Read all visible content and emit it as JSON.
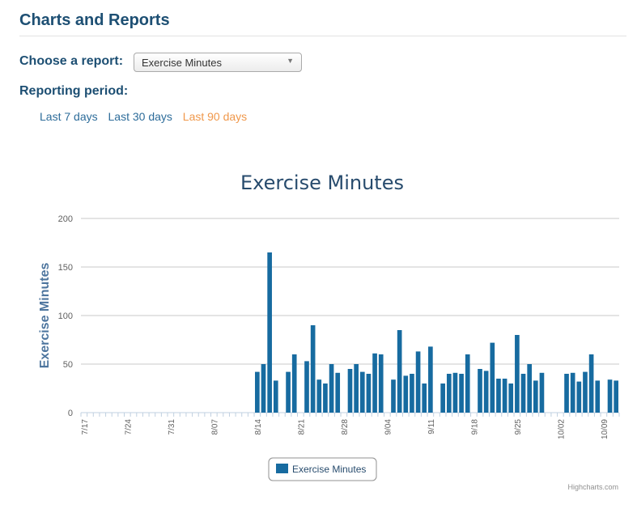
{
  "page": {
    "title": "Charts and Reports",
    "choose_label": "Choose a report:",
    "report_select": {
      "value": "Exercise Minutes"
    },
    "period_label": "Reporting period:",
    "periods": [
      {
        "label": "Last 7 days",
        "active": false
      },
      {
        "label": "Last 30 days",
        "active": false
      },
      {
        "label": "Last 90 days",
        "active": true
      }
    ],
    "credit": "Highcharts.com"
  },
  "colors": {
    "heading": "#1d4f73",
    "link": "#2d6c9a",
    "active_link": "#f0984b",
    "bar": "#176ba0"
  },
  "chart_data": {
    "type": "bar",
    "title": "Exercise Minutes",
    "ylabel": "Exercise Minutes",
    "xlabel": "",
    "ylim": [
      0,
      200
    ],
    "yticks": [
      0,
      50,
      100,
      150,
      200
    ],
    "grid": true,
    "legend_position": "bottom-center",
    "start_date": "7/17",
    "x_ticks": [
      "7/17",
      "7/24",
      "7/31",
      "8/07",
      "8/14",
      "8/21",
      "8/28",
      "9/04",
      "9/11",
      "9/18",
      "9/25",
      "10/02",
      "10/09"
    ],
    "series": [
      {
        "name": "Exercise Minutes",
        "color": "#176ba0",
        "values": [
          0,
          0,
          0,
          0,
          0,
          0,
          0,
          0,
          0,
          0,
          0,
          0,
          0,
          0,
          0,
          0,
          0,
          0,
          0,
          0,
          0,
          0,
          0,
          0,
          0,
          0,
          0,
          0,
          42,
          50,
          165,
          33,
          0,
          42,
          60,
          0,
          53,
          90,
          34,
          30,
          50,
          41,
          0,
          45,
          50,
          42,
          40,
          61,
          60,
          0,
          34,
          85,
          38,
          40,
          63,
          30,
          68,
          0,
          30,
          40,
          41,
          40,
          60,
          0,
          45,
          43,
          72,
          35,
          35,
          30,
          80,
          40,
          50,
          33,
          41,
          0,
          0,
          0,
          40,
          41,
          32,
          42,
          60,
          33,
          0,
          34,
          33
        ]
      }
    ]
  }
}
